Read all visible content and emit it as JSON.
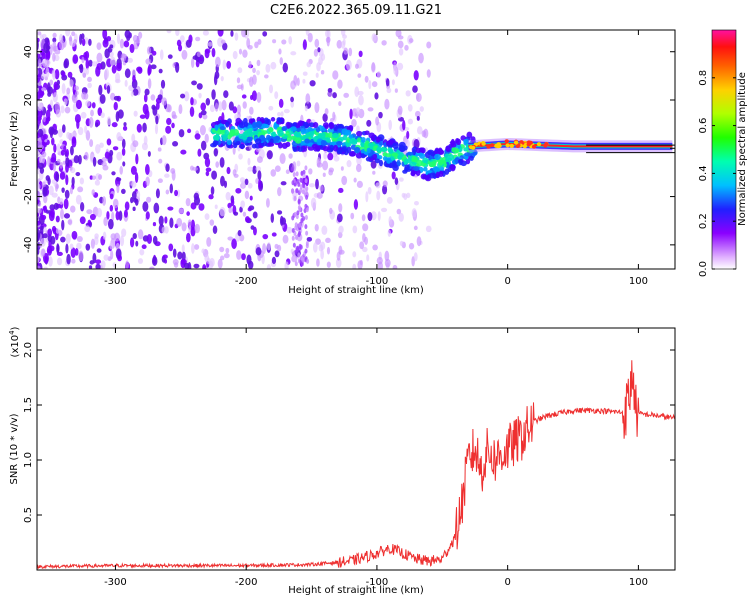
{
  "title": "C2E6.2022.365.09.11.G21",
  "chart_data": [
    {
      "type": "heatmap",
      "xlabel": "Height of straight line (km)",
      "ylabel": "Frequency (Hz)",
      "xlim": [
        -360,
        128
      ],
      "ylim": [
        -50,
        49
      ],
      "x_ticks": [
        -300,
        -200,
        -100,
        0,
        100
      ],
      "y_ticks": [
        -40,
        -20,
        0,
        20,
        40
      ],
      "ridge": [
        {
          "x": -225,
          "y": 6
        },
        {
          "x": -200,
          "y": 6
        },
        {
          "x": -180,
          "y": 7
        },
        {
          "x": -160,
          "y": 5
        },
        {
          "x": -140,
          "y": 5
        },
        {
          "x": -120,
          "y": 3
        },
        {
          "x": -100,
          "y": 0
        },
        {
          "x": -80,
          "y": -4
        },
        {
          "x": -60,
          "y": -7
        },
        {
          "x": -50,
          "y": -6
        },
        {
          "x": -40,
          "y": -2
        },
        {
          "x": -30,
          "y": 0
        },
        {
          "x": 0,
          "y": 1
        },
        {
          "x": 50,
          "y": 0
        },
        {
          "x": 128,
          "y": 0
        }
      ],
      "colorbar": {
        "label": "Normalized spectral amplitude",
        "range": [
          0,
          1
        ],
        "ticks": [
          "0.0",
          "0.2",
          "0.4",
          "0.6",
          "0.8"
        ]
      }
    },
    {
      "type": "line",
      "xlabel": "Height of straight line (km)",
      "ylabel": "SNR (10 * v/v)",
      "multiplier": "(x10",
      "multiplier_exp": "4",
      "multiplier_close": ")",
      "xlim": [
        -360,
        128
      ],
      "ylim": [
        0,
        2.2
      ],
      "x_ticks": [
        -300,
        -200,
        -100,
        0,
        100
      ],
      "y_ticks": [
        "0.5",
        "1.0",
        "1.5",
        "2.0"
      ],
      "color": "#ee3030",
      "series": [
        {
          "x": [
            -360,
            -300,
            -200,
            -150,
            -120,
            -100,
            -90,
            -80,
            -70,
            -60,
            -50,
            -40,
            -35,
            -30,
            -25,
            -20,
            -15,
            -10,
            0,
            10,
            20,
            30,
            50,
            70,
            90,
            94,
            96,
            98,
            100,
            110,
            128
          ],
          "y": [
            0.03,
            0.04,
            0.04,
            0.05,
            0.08,
            0.15,
            0.2,
            0.15,
            0.1,
            0.08,
            0.1,
            0.3,
            0.6,
            1.0,
            1.1,
            0.9,
            1.1,
            1.0,
            1.1,
            1.2,
            1.35,
            1.4,
            1.45,
            1.45,
            1.43,
            1.65,
            1.8,
            1.45,
            1.42,
            1.41,
            1.38
          ]
        }
      ]
    }
  ]
}
